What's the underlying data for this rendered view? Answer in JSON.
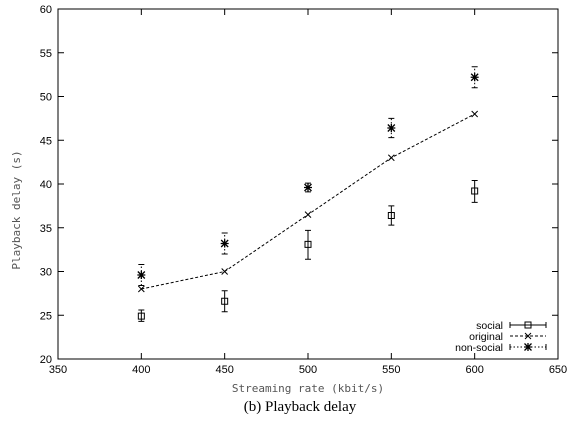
{
  "chart_data": {
    "type": "scatter",
    "title": "",
    "caption": "(b) Playback delay",
    "xlabel": "Streaming rate (kbit/s)",
    "ylabel": "Playback delay (s)",
    "xlim": [
      350,
      650
    ],
    "ylim": [
      20,
      60
    ],
    "xticks": [
      350,
      400,
      450,
      500,
      550,
      600,
      650
    ],
    "yticks": [
      20,
      25,
      30,
      35,
      40,
      45,
      50,
      55,
      60
    ],
    "grid": false,
    "legend_position": "bottom-right",
    "series": [
      {
        "name": "social",
        "style": "errorbar",
        "marker": "square",
        "x": [
          400,
          450,
          500,
          550,
          600
        ],
        "y": [
          24.9,
          26.6,
          33.1,
          36.4,
          39.2
        ],
        "err_low": [
          24.3,
          25.4,
          31.4,
          35.3,
          37.9
        ],
        "err_high": [
          25.6,
          27.8,
          34.7,
          37.5,
          40.4
        ]
      },
      {
        "name": "original",
        "style": "line",
        "marker": "x",
        "x": [
          400,
          450,
          500,
          550,
          600
        ],
        "y": [
          28.0,
          30.0,
          36.5,
          43.0,
          48.0
        ]
      },
      {
        "name": "non-social",
        "style": "errorbar",
        "marker": "star",
        "x": [
          400,
          450,
          500,
          550,
          600
        ],
        "y": [
          29.6,
          33.2,
          39.6,
          46.4,
          52.2
        ],
        "err_low": [
          28.4,
          32.0,
          39.1,
          45.3,
          51.0
        ],
        "err_high": [
          30.8,
          34.4,
          40.1,
          47.5,
          53.4
        ]
      }
    ]
  }
}
